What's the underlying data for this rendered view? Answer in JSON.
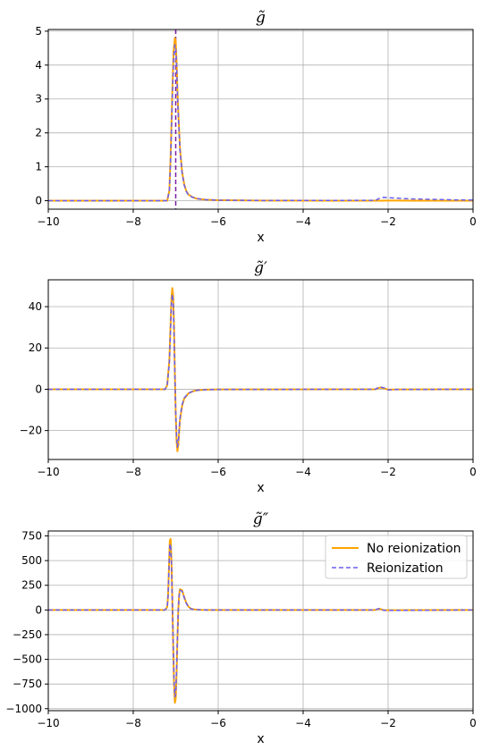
{
  "colors": {
    "no_reionization": "#ffa500",
    "reionization": "#6a5ef0",
    "grid": "#b0b0b0",
    "vline": "#7b1fa2"
  },
  "chart_data": [
    {
      "type": "line",
      "title": "g̃",
      "xlabel": "x",
      "ylabel": "",
      "xlim": [
        -10,
        0
      ],
      "ylim": [
        -0.25,
        5.05
      ],
      "xticks": [
        -10,
        -8,
        -6,
        -4,
        -2,
        0
      ],
      "xtick_labels": [
        "−10",
        "−8",
        "−6",
        "−4",
        "−2",
        "0"
      ],
      "yticks": [
        0,
        1,
        2,
        3,
        4,
        5
      ],
      "ytick_labels": [
        "0",
        "1",
        "2",
        "3",
        "4",
        "5"
      ],
      "grid": true,
      "vline_x": -7.0,
      "series": [
        {
          "style": "solid",
          "x": [
            -10,
            -7.2,
            -7.15,
            -7.12,
            -7.08,
            -7.05,
            -7.02,
            -7.0,
            -6.98,
            -6.95,
            -6.9,
            -6.85,
            -6.8,
            -6.75,
            -6.7,
            -6.6,
            -6.5,
            -6.3,
            -6,
            -5,
            -2.2,
            -2.1,
            -2.0,
            -1.8,
            -1.5,
            0
          ],
          "y": [
            0,
            0,
            0.3,
            1.3,
            3.2,
            4.4,
            4.8,
            4.7,
            4.1,
            2.9,
            1.55,
            0.85,
            0.48,
            0.28,
            0.18,
            0.1,
            0.06,
            0.03,
            0.015,
            0.005,
            0,
            0.002,
            0.003,
            0.003,
            0.002,
            0
          ]
        },
        {
          "style": "dashed",
          "x": [
            -10,
            -7.2,
            -7.15,
            -7.12,
            -7.08,
            -7.05,
            -7.02,
            -7.0,
            -6.98,
            -6.95,
            -6.9,
            -6.85,
            -6.8,
            -6.75,
            -6.7,
            -6.6,
            -6.5,
            -6.3,
            -6,
            -5,
            -2.3,
            -2.2,
            -2.1,
            -2.0,
            -1.8,
            -1.5,
            -1.0,
            -0.5,
            0
          ],
          "y": [
            0,
            0,
            0.3,
            1.2,
            3.0,
            4.2,
            4.6,
            4.5,
            4.0,
            2.8,
            1.5,
            0.82,
            0.46,
            0.27,
            0.17,
            0.1,
            0.06,
            0.03,
            0.015,
            0.005,
            0.01,
            0.07,
            0.1,
            0.09,
            0.075,
            0.055,
            0.04,
            0.025,
            0.02
          ]
        }
      ]
    },
    {
      "type": "line",
      "title": "g̃′",
      "xlabel": "x",
      "ylabel": "",
      "xlim": [
        -10,
        0
      ],
      "ylim": [
        -34,
        53
      ],
      "xticks": [
        -10,
        -8,
        -6,
        -4,
        -2,
        0
      ],
      "xtick_labels": [
        "−10",
        "−8",
        "−6",
        "−4",
        "−2",
        "0"
      ],
      "yticks": [
        -20,
        0,
        20,
        40
      ],
      "ytick_labels": [
        "−20",
        "0",
        "20",
        "40"
      ],
      "grid": true,
      "series": [
        {
          "style": "solid",
          "x": [
            -10,
            -7.25,
            -7.2,
            -7.15,
            -7.12,
            -7.1,
            -7.08,
            -7.06,
            -7.04,
            -7.02,
            -7.0,
            -6.98,
            -6.96,
            -6.94,
            -6.92,
            -6.9,
            -6.85,
            -6.8,
            -6.7,
            -6.6,
            -6.5,
            -6.3,
            -6,
            -2.3,
            -2.2,
            -2.1,
            -2.0,
            -1.8,
            0
          ],
          "y": [
            0,
            0,
            2,
            14,
            32,
            44,
            49,
            45,
            30,
            8,
            -12,
            -25,
            -30,
            -27,
            -21,
            -15,
            -8,
            -4.5,
            -2,
            -1,
            -0.5,
            -0.2,
            -0.1,
            0,
            0.8,
            0.5,
            -0.2,
            -0.1,
            0
          ]
        },
        {
          "style": "dashed",
          "x": [
            -10,
            -7.25,
            -7.2,
            -7.15,
            -7.12,
            -7.1,
            -7.08,
            -7.06,
            -7.04,
            -7.02,
            -7.0,
            -6.98,
            -6.96,
            -6.94,
            -6.92,
            -6.9,
            -6.85,
            -6.8,
            -6.7,
            -6.6,
            -6.5,
            -6.3,
            -6,
            -2.3,
            -2.2,
            -2.1,
            -2.0,
            -1.8,
            0
          ],
          "y": [
            0,
            0,
            2,
            13,
            30,
            42,
            46,
            42,
            28,
            7,
            -11,
            -23,
            -28,
            -26,
            -20,
            -14,
            -7.5,
            -4.2,
            -1.9,
            -1,
            -0.5,
            -0.2,
            -0.1,
            0,
            1.2,
            0.7,
            -0.3,
            -0.1,
            0
          ]
        }
      ]
    },
    {
      "type": "line",
      "title": "g̃″",
      "xlabel": "x",
      "ylabel": "",
      "xlim": [
        -10,
        0
      ],
      "ylim": [
        -1020,
        800
      ],
      "xticks": [
        -10,
        -8,
        -6,
        -4,
        -2,
        0
      ],
      "xtick_labels": [
        "−10",
        "−8",
        "−6",
        "−4",
        "−2",
        "0"
      ],
      "yticks": [
        -1000,
        -750,
        -500,
        -250,
        0,
        250,
        500,
        750
      ],
      "ytick_labels": [
        "−1000",
        "−750",
        "−500",
        "−250",
        "0",
        "250",
        "500",
        "750"
      ],
      "grid": true,
      "legend": "upper right",
      "series": [
        {
          "name": "No reionization",
          "style": "solid",
          "x": [
            -10,
            -7.25,
            -7.2,
            -7.18,
            -7.16,
            -7.14,
            -7.12,
            -7.1,
            -7.08,
            -7.06,
            -7.04,
            -7.02,
            -7.0,
            -6.98,
            -6.96,
            -6.94,
            -6.92,
            -6.9,
            -6.85,
            -6.8,
            -6.75,
            -6.7,
            -6.65,
            -6.6,
            -6.5,
            -6.4,
            -6.2,
            -6,
            -2.3,
            -2.25,
            -2.2,
            -2.15,
            -2.1,
            0
          ],
          "y": [
            0,
            0,
            30,
            150,
            420,
            700,
            720,
            500,
            100,
            -350,
            -750,
            -940,
            -900,
            -650,
            -300,
            0,
            150,
            210,
            200,
            130,
            70,
            35,
            15,
            8,
            3,
            1,
            0,
            0,
            0,
            8,
            12,
            5,
            -3,
            0
          ]
        },
        {
          "name": "Reionization",
          "style": "dashed",
          "x": [
            -10,
            -7.25,
            -7.2,
            -7.18,
            -7.16,
            -7.14,
            -7.12,
            -7.1,
            -7.08,
            -7.06,
            -7.04,
            -7.02,
            -7.0,
            -6.98,
            -6.96,
            -6.94,
            -6.92,
            -6.9,
            -6.85,
            -6.8,
            -6.75,
            -6.7,
            -6.65,
            -6.6,
            -6.5,
            -6.4,
            -6.2,
            -6,
            -2.3,
            -2.25,
            -2.2,
            -2.15,
            -2.1,
            0
          ],
          "y": [
            0,
            0,
            28,
            140,
            400,
            650,
            670,
            470,
            90,
            -330,
            -700,
            -880,
            -850,
            -620,
            -290,
            0,
            140,
            200,
            190,
            125,
            65,
            32,
            14,
            7,
            3,
            1,
            0,
            0,
            0,
            10,
            15,
            6,
            -4,
            0
          ]
        }
      ]
    }
  ]
}
